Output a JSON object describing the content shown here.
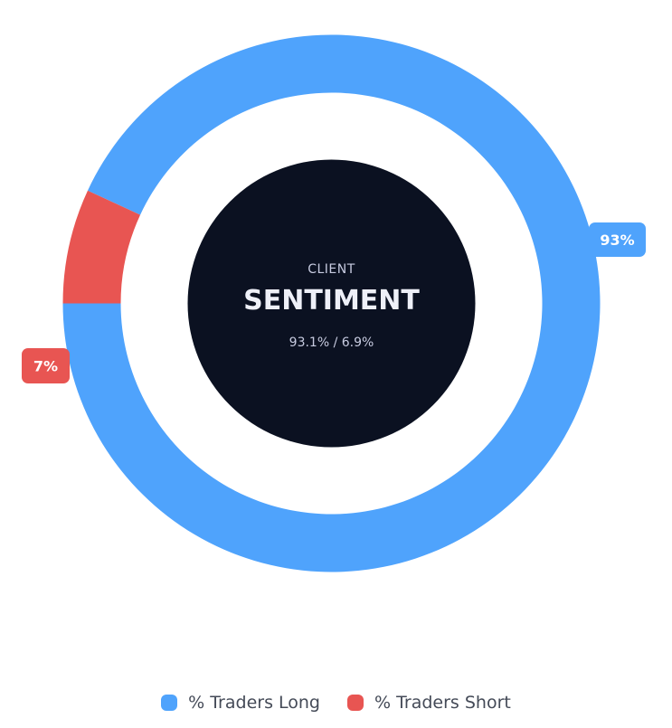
{
  "chart_data": {
    "type": "pie",
    "variant": "donut",
    "center": {
      "label": "CLIENT",
      "title": "SENTIMENT",
      "subtitle": "93.1% / 6.9%"
    },
    "series": [
      {
        "name": "% Traders Long",
        "value": 93.1,
        "data_label": "93%",
        "color": "#4fa3fc"
      },
      {
        "name": "% Traders Short",
        "value": 6.9,
        "data_label": "7%",
        "color": "#e85552"
      }
    ],
    "legend_position": "bottom"
  }
}
